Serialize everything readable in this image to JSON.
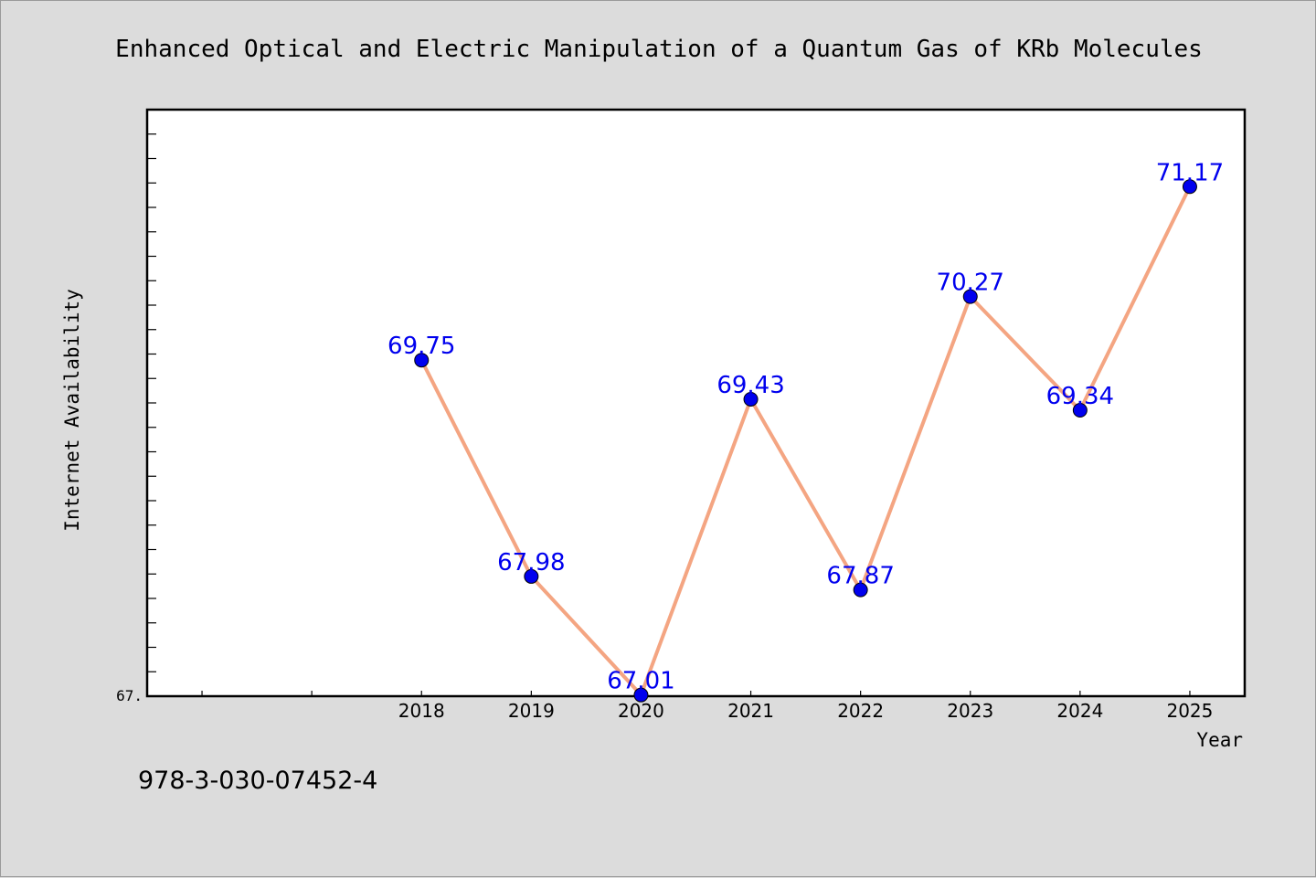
{
  "chart_data": {
    "type": "line",
    "title": "Enhanced Optical and Electric Manipulation of a Quantum Gas of KRb Molecules",
    "xlabel": "Year",
    "ylabel": "Internet Availability",
    "categories": [
      "2018",
      "2019",
      "2020",
      "2021",
      "2022",
      "2023",
      "2024",
      "2025"
    ],
    "series": [
      {
        "values": [
          69.75,
          67.98,
          67.01,
          69.43,
          67.87,
          70.27,
          69.34,
          71.17
        ],
        "labels": [
          "69.75",
          "67.98",
          "67.01",
          "69.43",
          "67.87",
          "70.27",
          "69.34",
          "71.17"
        ]
      }
    ],
    "ylim": [
      67.0,
      71.8
    ],
    "y_tick_label": "67.",
    "grid": false,
    "line_color": "#f4a582",
    "marker_color": "#0000ee",
    "label_color": "#0000ee"
  },
  "footer": {
    "isbn": "978-3-030-07452-4"
  }
}
